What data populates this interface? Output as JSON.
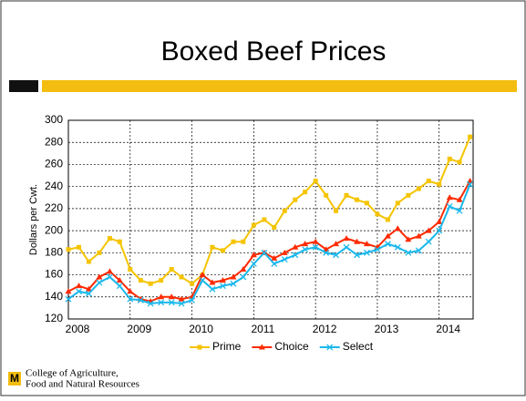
{
  "slide": {
    "title": "Boxed Beef Prices",
    "footer": [
      "College of Agriculture,",
      "Food and Natural Resources"
    ]
  },
  "chart_data": {
    "type": "line",
    "ylabel": "Dollars per Cwt.",
    "x": [
      2008.0,
      2008.17,
      2008.33,
      2008.5,
      2008.67,
      2008.83,
      2009.0,
      2009.17,
      2009.33,
      2009.5,
      2009.67,
      2009.83,
      2010.0,
      2010.17,
      2010.33,
      2010.5,
      2010.67,
      2010.83,
      2011.0,
      2011.17,
      2011.33,
      2011.5,
      2011.67,
      2011.83,
      2012.0,
      2012.17,
      2012.33,
      2012.5,
      2012.67,
      2012.83,
      2013.0,
      2013.17,
      2013.33,
      2013.5,
      2013.67,
      2013.83,
      2014.0,
      2014.17,
      2014.33,
      2014.5
    ],
    "series": [
      {
        "name": "Prime",
        "color": "#f5c400",
        "marker": "square",
        "values": [
          183,
          185,
          172,
          180,
          193,
          190,
          165,
          155,
          152,
          155,
          165,
          158,
          152,
          160,
          185,
          182,
          190,
          190,
          205,
          210,
          203,
          218,
          228,
          235,
          245,
          232,
          218,
          232,
          228,
          225,
          215,
          210,
          225,
          232,
          238,
          245,
          242,
          265,
          262,
          285
        ]
      },
      {
        "name": "Choice",
        "color": "#ff2a00",
        "marker": "triangle",
        "values": [
          145,
          150,
          147,
          158,
          163,
          155,
          145,
          138,
          136,
          140,
          140,
          138,
          140,
          160,
          153,
          155,
          158,
          165,
          178,
          180,
          175,
          180,
          185,
          188,
          190,
          183,
          188,
          193,
          190,
          188,
          185,
          195,
          202,
          192,
          195,
          200,
          208,
          230,
          228,
          245
        ]
      },
      {
        "name": "Select",
        "color": "#1ab8ec",
        "marker": "x",
        "values": [
          138,
          145,
          143,
          153,
          158,
          150,
          138,
          137,
          134,
          135,
          135,
          134,
          137,
          155,
          147,
          150,
          152,
          158,
          170,
          180,
          170,
          174,
          178,
          183,
          185,
          180,
          178,
          185,
          178,
          180,
          183,
          188,
          185,
          180,
          182,
          190,
          200,
          222,
          218,
          242
        ]
      }
    ],
    "xlim": [
      2008,
      2014.55
    ],
    "xticks": [
      2008,
      2009,
      2010,
      2011,
      2012,
      2013,
      2014
    ],
    "ylim": [
      120,
      300
    ],
    "yticks": [
      120,
      140,
      160,
      180,
      200,
      220,
      240,
      260,
      280,
      300
    ],
    "grid": true,
    "legend": "bottom"
  }
}
